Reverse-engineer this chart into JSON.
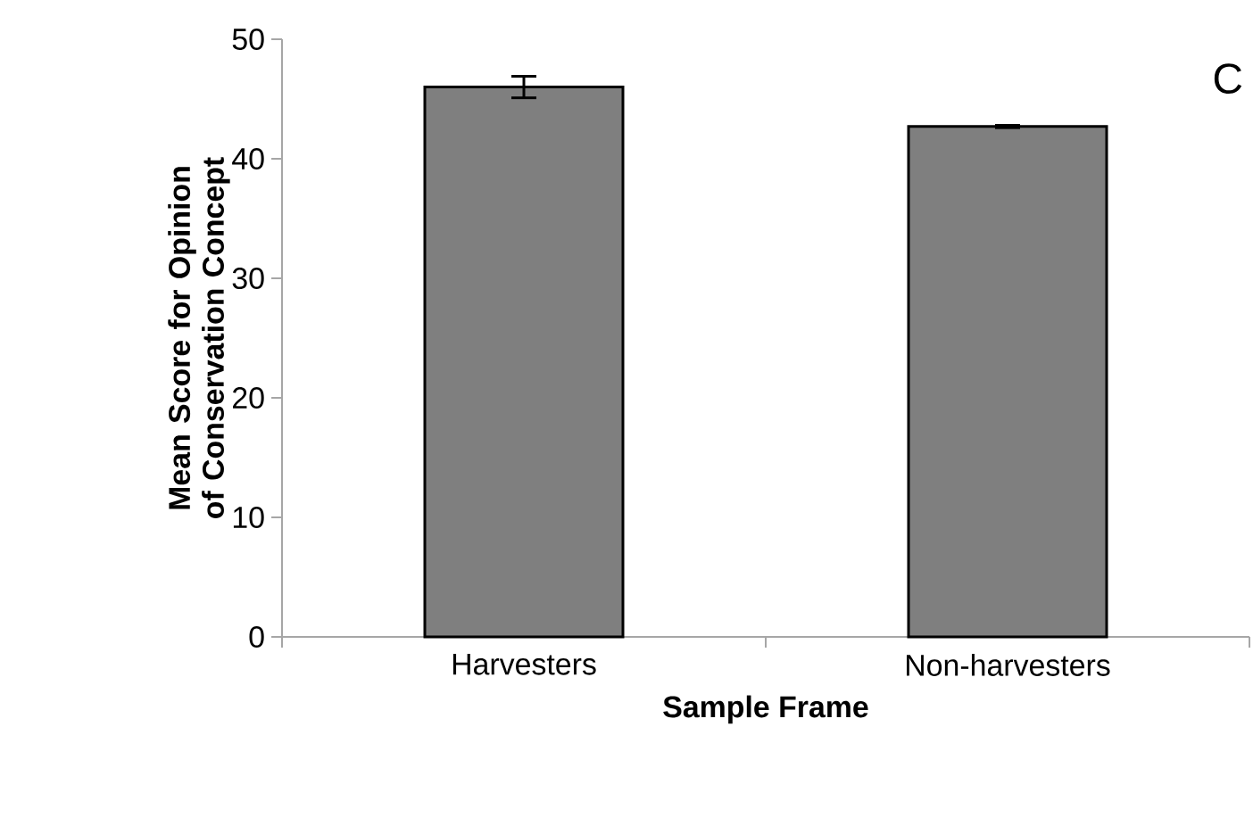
{
  "chart_data": {
    "type": "bar",
    "categories": [
      "Harvesters",
      "Non-harvesters"
    ],
    "values": [
      46.0,
      42.7
    ],
    "errors": [
      0.9,
      0.1
    ],
    "color": "#7f7f7f",
    "xlabel": "Sample Frame",
    "ylabel": "Mean Score for Opinion of Conservation Concept",
    "ylim": [
      0,
      50
    ],
    "yticks": [
      0,
      10,
      20,
      30,
      40,
      50
    ],
    "annotations": [
      "C"
    ],
    "grid": false
  }
}
